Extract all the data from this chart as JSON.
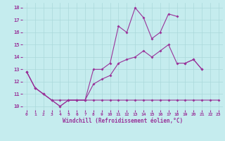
{
  "xlabel": "Windchill (Refroidissement éolien,°C)",
  "background_color": "#c5ecee",
  "line_color": "#993399",
  "grid_color": "#aad8da",
  "xlim": [
    -0.5,
    23.5
  ],
  "ylim": [
    9.7,
    18.4
  ],
  "xticks": [
    0,
    1,
    2,
    3,
    4,
    5,
    6,
    7,
    8,
    9,
    10,
    11,
    12,
    13,
    14,
    15,
    16,
    17,
    18,
    19,
    20,
    21,
    22,
    23
  ],
  "yticks": [
    10,
    11,
    12,
    13,
    14,
    15,
    16,
    17,
    18
  ],
  "line1_y": [
    12.8,
    11.5,
    11.0,
    10.5,
    10.0,
    10.5,
    10.5,
    10.5,
    13.0,
    13.0,
    13.5,
    16.5,
    16.0,
    18.0,
    17.2,
    15.5,
    16.0,
    17.5,
    17.3,
    null,
    null,
    null,
    null,
    null
  ],
  "line2_y": [
    null,
    null,
    null,
    null,
    null,
    null,
    null,
    null,
    null,
    null,
    null,
    null,
    null,
    null,
    null,
    null,
    null,
    null,
    null,
    13.5,
    13.8,
    13.0,
    null,
    null
  ],
  "line3_y": [
    12.8,
    11.5,
    11.0,
    10.5,
    10.0,
    10.5,
    10.5,
    10.5,
    11.8,
    12.2,
    12.5,
    13.5,
    13.8,
    14.0,
    14.5,
    14.0,
    14.5,
    15.0,
    13.5,
    13.5,
    13.8,
    13.0,
    null,
    null
  ],
  "line4_y": [
    12.8,
    11.5,
    11.0,
    10.5,
    10.5,
    10.5,
    10.5,
    10.5,
    10.5,
    10.5,
    10.5,
    10.5,
    10.5,
    10.5,
    10.5,
    10.5,
    10.5,
    10.5,
    10.5,
    10.5,
    10.5,
    10.5,
    10.5,
    10.5
  ]
}
